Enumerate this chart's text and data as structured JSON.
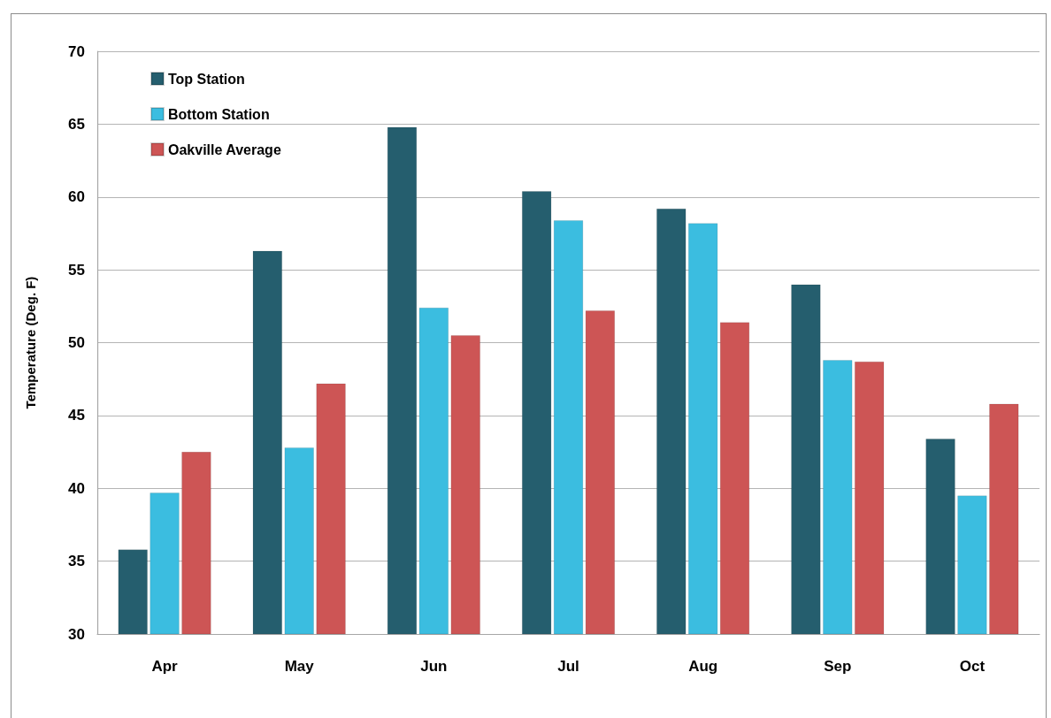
{
  "chart_data": {
    "type": "bar",
    "ylabel": "Temperature (Deg. F)",
    "categories": [
      "Apr",
      "May",
      "Jun",
      "Jul",
      "Aug",
      "Sep",
      "Oct"
    ],
    "series": [
      {
        "name": "Top Station",
        "color": "#255e6e",
        "values": [
          35.8,
          56.3,
          64.8,
          60.4,
          59.2,
          54.0,
          43.4
        ]
      },
      {
        "name": "Bottom Station",
        "color": "#3bbde0",
        "values": [
          39.7,
          42.8,
          52.4,
          58.4,
          58.2,
          48.8,
          39.5
        ]
      },
      {
        "name": "Oakville Average",
        "color": "#cd5555",
        "values": [
          42.5,
          47.2,
          50.5,
          52.2,
          51.4,
          48.7,
          45.8
        ]
      }
    ],
    "ylim": [
      30,
      70
    ],
    "yticks": [
      30,
      35,
      40,
      45,
      50,
      55,
      60,
      65,
      70
    ],
    "grid": "y",
    "legend": "top left"
  }
}
